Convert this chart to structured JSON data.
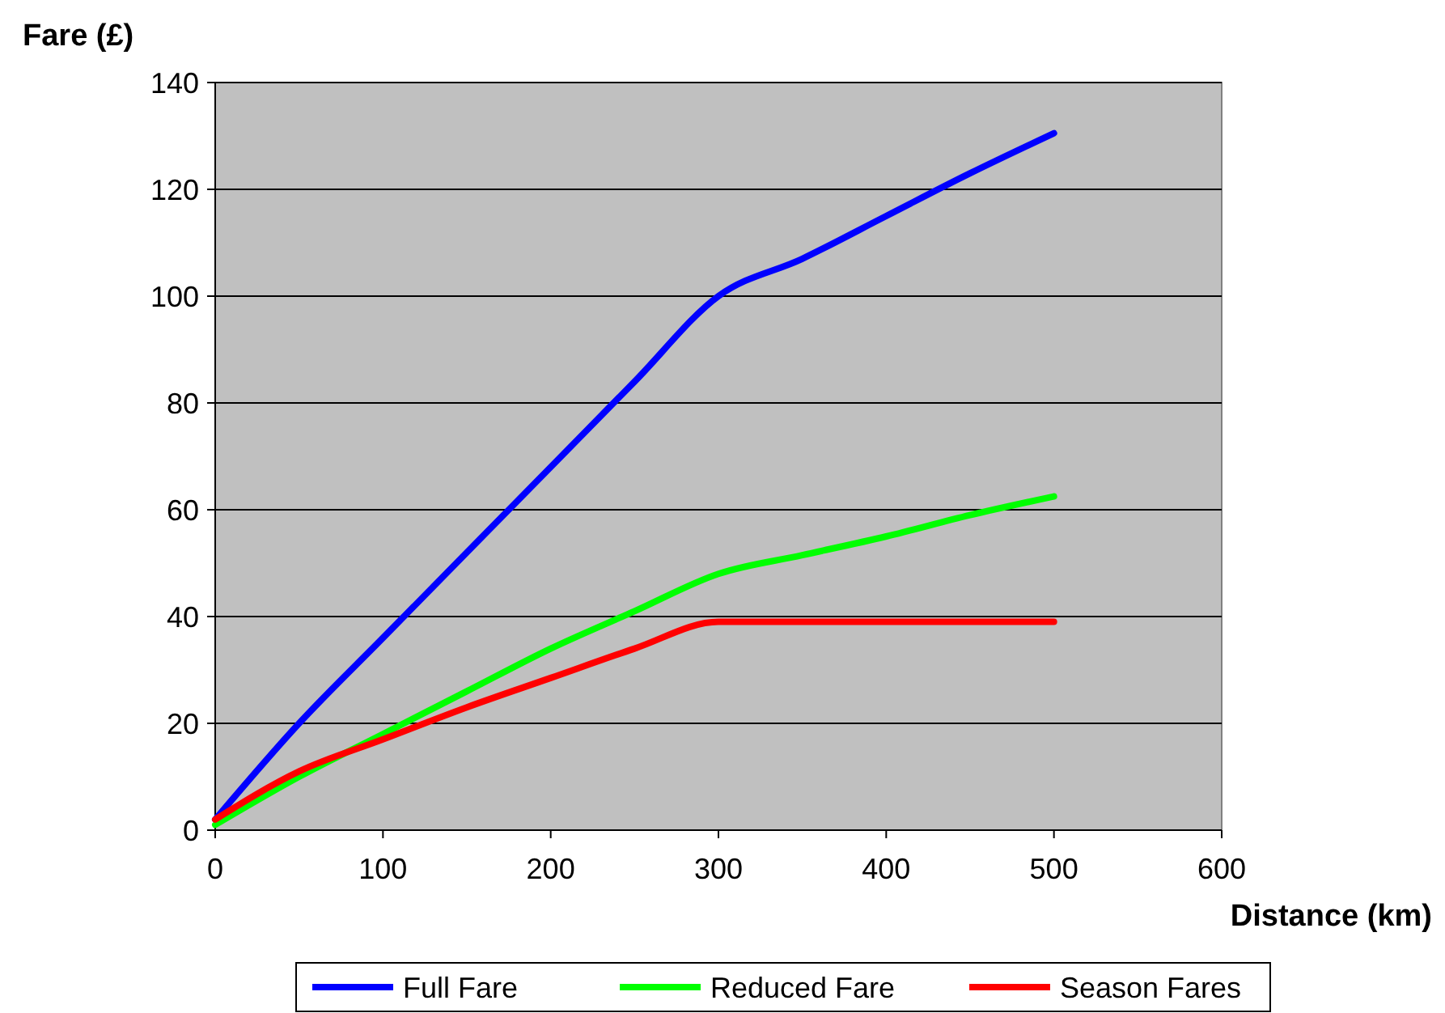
{
  "chart_data": {
    "type": "line",
    "xlabel": "Distance (km)",
    "ylabel": "Fare (£)",
    "x": [
      0,
      50,
      100,
      150,
      200,
      250,
      300,
      350,
      400,
      450,
      500
    ],
    "series": [
      {
        "name": "Full Fare",
        "color": "#0000ff",
        "values": [
          2,
          20,
          36,
          52,
          68,
          84,
          100,
          107,
          115,
          123,
          130.5
        ]
      },
      {
        "name": "Reduced Fare",
        "color": "#00ff00",
        "values": [
          1,
          10,
          18,
          26,
          34,
          41,
          48,
          51.5,
          55,
          59,
          62.5
        ]
      },
      {
        "name": "Season Fares",
        "color": "#ff0000",
        "values": [
          2,
          11,
          17,
          23,
          28.5,
          34,
          39,
          39,
          39,
          39,
          39
        ]
      }
    ],
    "xlim": [
      0,
      600
    ],
    "xticks": [
      0,
      100,
      200,
      300,
      400,
      500,
      600
    ],
    "ylim": [
      0,
      140
    ],
    "yticks": [
      0,
      20,
      40,
      60,
      80,
      100,
      120,
      140
    ],
    "grid": "y",
    "legend": "bottom",
    "marker": "none",
    "line_style": "solid"
  }
}
